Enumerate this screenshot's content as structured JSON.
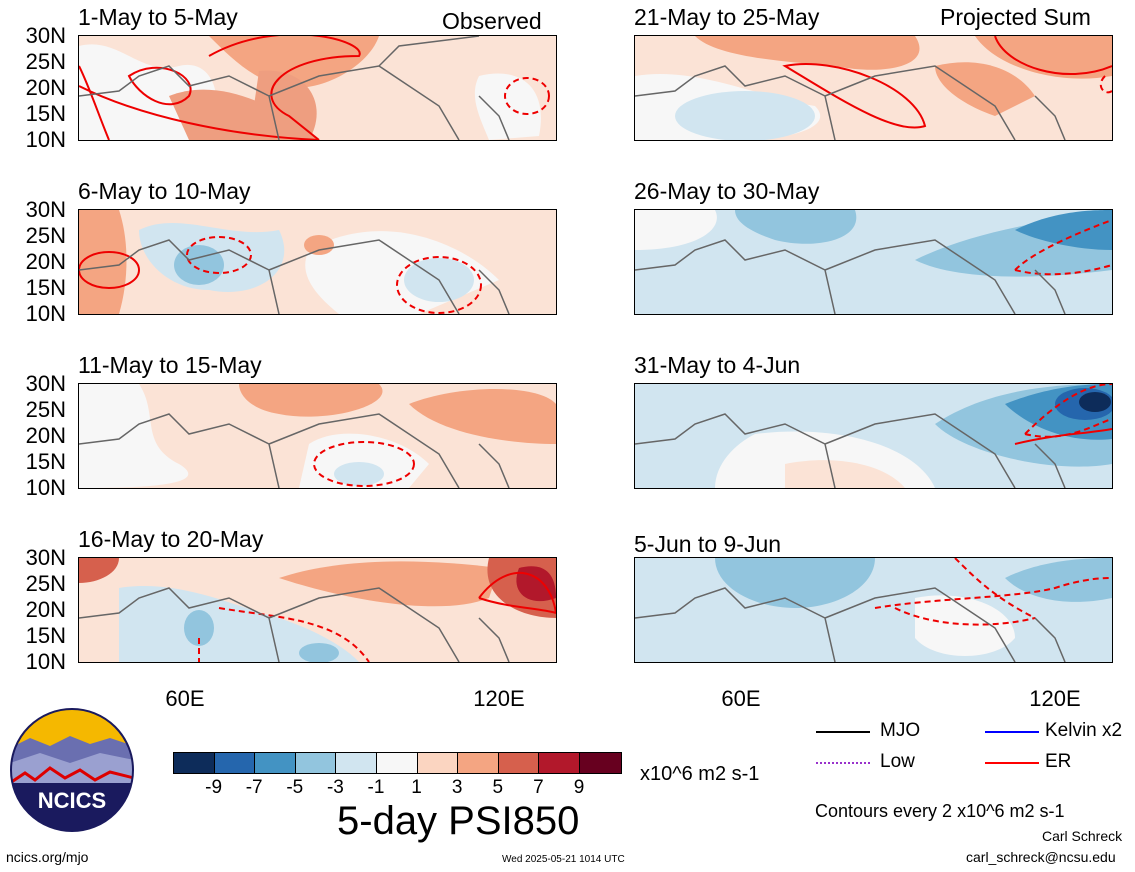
{
  "panels": [
    {
      "title": "1-May to 5-May",
      "tag": "Observed"
    },
    {
      "title": "6-May to 10-May",
      "tag": ""
    },
    {
      "title": "11-May to 15-May",
      "tag": ""
    },
    {
      "title": "16-May to 20-May",
      "tag": ""
    },
    {
      "title": "21-May to 25-May",
      "tag": "Projected Sum"
    },
    {
      "title": "26-May to 30-May",
      "tag": ""
    },
    {
      "title": "31-May to 4-Jun",
      "tag": ""
    },
    {
      "title": "5-Jun to 9-Jun",
      "tag": ""
    }
  ],
  "lat_labels": [
    "30N",
    "25N",
    "20N",
    "15N",
    "10N"
  ],
  "lon_labels": [
    "60E",
    "120E"
  ],
  "colorbar": {
    "labels": [
      "-9",
      "-7",
      "-5",
      "-3",
      "-1",
      "1",
      "3",
      "5",
      "7",
      "9"
    ],
    "colors": [
      "#0d2c5a",
      "#2566ad",
      "#4393c3",
      "#92c5de",
      "#d1e5f0",
      "#f7f7f7",
      "#fbd5c1",
      "#f4a582",
      "#d6604d",
      "#b2182b",
      "#67001f"
    ],
    "units": "x10^6 m2 s-1"
  },
  "main_title": "5-day PSI850",
  "legend": [
    {
      "label": "MJO",
      "color": "#000000",
      "style": "solid"
    },
    {
      "label": "Low",
      "color": "#9932cc",
      "style": "dotted"
    },
    {
      "label": "Kelvin x2",
      "color": "#0000ff",
      "style": "solid"
    },
    {
      "label": "ER",
      "color": "#ff0000",
      "style": "solid"
    }
  ],
  "contours_note": "Contours every 2 x10^6 m2 s-1",
  "author": "Carl Schreck",
  "email": "carl_schreck@ncsu.edu",
  "site": "ncics.org/mjo",
  "timestamp": "Wed 2025-05-21 1014 UTC",
  "logo_text": "NCICS"
}
